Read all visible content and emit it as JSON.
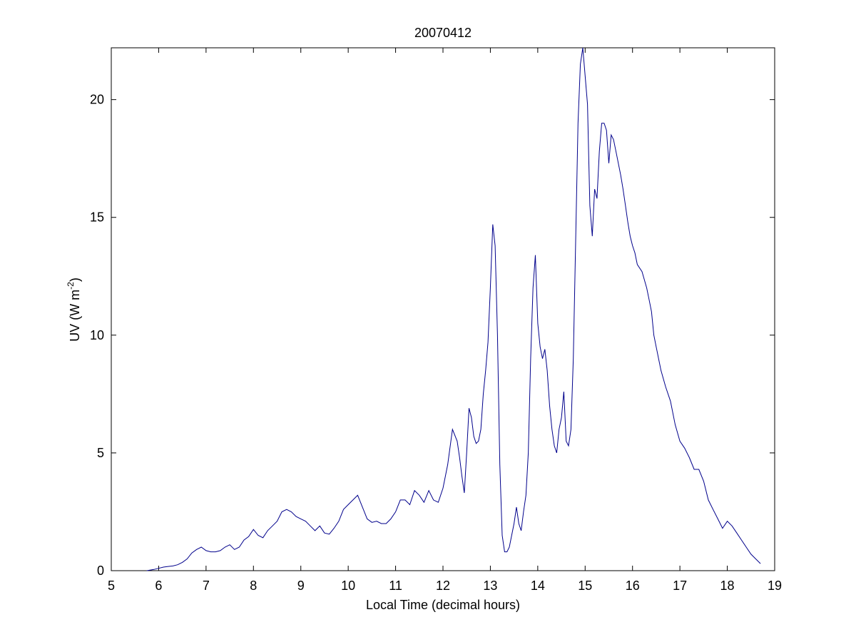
{
  "chart_data": {
    "type": "line",
    "title": "20070412",
    "xlabel": "Local Time (decimal hours)",
    "ylabel_parts": {
      "before": "UV (W m",
      "exponent": "-2",
      "after": ")"
    },
    "xlim": [
      5,
      19
    ],
    "ylim": [
      0,
      22.2
    ],
    "xticks": [
      "5",
      "6",
      "7",
      "8",
      "9",
      "10",
      "11",
      "12",
      "13",
      "14",
      "15",
      "16",
      "17",
      "18",
      "19"
    ],
    "yticks": [
      "0",
      "5",
      "10",
      "15",
      "20"
    ],
    "grid": false,
    "line_color": "#00008b",
    "series": [
      {
        "x": [
          5.75,
          5.9,
          6.0,
          6.1,
          6.2,
          6.3,
          6.4,
          6.5,
          6.6,
          6.7,
          6.8,
          6.9,
          7.0,
          7.1,
          7.2,
          7.3,
          7.4,
          7.5,
          7.6,
          7.7,
          7.8,
          7.9,
          8.0,
          8.1,
          8.2,
          8.3,
          8.4,
          8.5,
          8.6,
          8.7,
          8.8,
          8.9,
          9.0,
          9.1,
          9.2,
          9.3,
          9.4,
          9.5,
          9.6,
          9.7,
          9.8,
          9.9,
          10.0,
          10.1,
          10.2,
          10.3,
          10.4,
          10.5,
          10.6,
          10.7,
          10.8,
          10.9,
          11.0,
          11.1,
          11.2,
          11.3,
          11.4,
          11.5,
          11.6,
          11.7,
          11.8,
          11.9,
          12.0,
          12.1,
          12.2,
          12.3,
          12.35,
          12.4,
          12.45,
          12.5,
          12.55,
          12.6,
          12.65,
          12.7,
          12.75,
          12.8,
          12.85,
          12.9,
          12.95,
          13.0,
          13.05,
          13.1,
          13.15,
          13.2,
          13.25,
          13.3,
          13.35,
          13.4,
          13.45,
          13.5,
          13.55,
          13.6,
          13.65,
          13.7,
          13.75,
          13.8,
          13.85,
          13.9,
          13.95,
          14.0,
          14.05,
          14.1,
          14.15,
          14.2,
          14.25,
          14.3,
          14.35,
          14.4,
          14.45,
          14.5,
          14.55,
          14.6,
          14.65,
          14.7,
          14.75,
          14.8,
          14.85,
          14.9,
          14.95,
          15.0,
          15.05,
          15.1,
          15.15,
          15.2,
          15.25,
          15.3,
          15.35,
          15.4,
          15.45,
          15.5,
          15.55,
          15.6,
          15.65,
          15.7,
          15.75,
          15.8,
          15.85,
          15.9,
          15.95,
          16.0,
          16.05,
          16.1,
          16.2,
          16.3,
          16.35,
          16.4,
          16.45,
          16.5,
          16.6,
          16.7,
          16.8,
          16.9,
          17.0,
          17.1,
          17.2,
          17.3,
          17.4,
          17.5,
          17.6,
          17.7,
          17.8,
          17.9,
          18.0,
          18.1,
          18.2,
          18.3,
          18.4,
          18.5,
          18.6,
          18.7
        ],
        "y": [
          0.0,
          0.05,
          0.1,
          0.15,
          0.18,
          0.2,
          0.25,
          0.35,
          0.5,
          0.75,
          0.9,
          1.0,
          0.85,
          0.8,
          0.8,
          0.85,
          1.0,
          1.1,
          0.9,
          1.0,
          1.3,
          1.45,
          1.75,
          1.5,
          1.4,
          1.7,
          1.9,
          2.1,
          2.5,
          2.6,
          2.5,
          2.3,
          2.2,
          2.1,
          1.9,
          1.7,
          1.9,
          1.6,
          1.55,
          1.8,
          2.1,
          2.6,
          2.8,
          3.0,
          3.2,
          2.7,
          2.2,
          2.05,
          2.1,
          2.0,
          2.0,
          2.2,
          2.5,
          3.0,
          3.0,
          2.8,
          3.4,
          3.2,
          2.9,
          3.4,
          3.0,
          2.9,
          3.5,
          4.5,
          6.0,
          5.5,
          4.8,
          4.0,
          3.3,
          5.0,
          6.9,
          6.5,
          5.7,
          5.4,
          5.5,
          6.0,
          7.5,
          8.5,
          9.7,
          12.0,
          14.7,
          13.8,
          10.0,
          4.5,
          1.5,
          0.8,
          0.8,
          1.0,
          1.5,
          2.0,
          2.7,
          2.0,
          1.7,
          2.5,
          3.2,
          5.0,
          9.0,
          12.0,
          13.4,
          10.5,
          9.5,
          9.0,
          9.4,
          8.5,
          7.0,
          6.0,
          5.3,
          5.0,
          6.0,
          6.5,
          7.6,
          5.5,
          5.3,
          6.0,
          9.0,
          14.0,
          19.0,
          21.5,
          22.2,
          21.0,
          19.8,
          15.5,
          14.2,
          16.2,
          15.8,
          17.8,
          19.0,
          19.0,
          18.7,
          17.3,
          18.5,
          18.3,
          17.8,
          17.3,
          16.8,
          16.2,
          15.5,
          14.8,
          14.2,
          13.8,
          13.5,
          13.0,
          12.7,
          12.0,
          11.5,
          11.0,
          10.0,
          9.5,
          8.5,
          7.8,
          7.2,
          6.2,
          5.5,
          5.2,
          4.8,
          4.3,
          4.3,
          3.8,
          3.0,
          2.6,
          2.2,
          1.8,
          2.1,
          1.9,
          1.6,
          1.3,
          1.0,
          0.7,
          0.5,
          0.3
        ]
      }
    ]
  }
}
